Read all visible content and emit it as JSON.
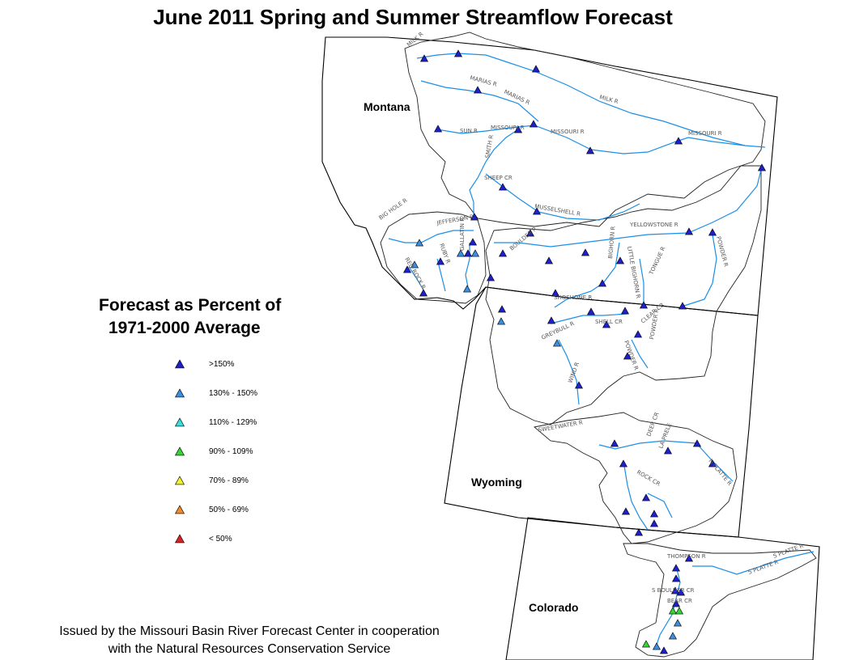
{
  "title": "June 2011 Spring and Summer Streamflow Forecast",
  "legend": {
    "title_line1": "Forecast as Percent of",
    "title_line2": "1971-2000 Average",
    "items": [
      {
        "label": ">150%",
        "color": "#1f1fcc"
      },
      {
        "label": "130% - 150%",
        "color": "#3c8ee0"
      },
      {
        "label": "110% - 129%",
        "color": "#36e0e0"
      },
      {
        "label": "90% - 109%",
        "color": "#33d633"
      },
      {
        "label": "70% - 89%",
        "color": "#f2f230"
      },
      {
        "label": "50% - 69%",
        "color": "#f08a2c"
      },
      {
        "label": "< 50%",
        "color": "#e02020"
      }
    ]
  },
  "states": {
    "montana": "Montana",
    "wyoming": "Wyoming",
    "colorado": "Colorado"
  },
  "river_labels": [
    "MILK R",
    "MARIAS R",
    "MARIAS R",
    "MILK R",
    "SUN R",
    "MISSOURI R",
    "MISSOURI R",
    "MISSOURI R",
    "SMITH R",
    "SHEEP CR",
    "MUSSELSHELL R",
    "BIG HOLE R",
    "JEFFERSON R",
    "RUBY R",
    "GALLATIN R",
    "RED ROCK R",
    "BOULDER R",
    "YELLOWSTONE R",
    "BIGHORN R",
    "LITTLE BIGHORN R",
    "TONGUE R",
    "POWDER R",
    "SHOSHONE R",
    "GREYBULL R",
    "SHELL CR",
    "CLEAR CR",
    "POWDER R",
    "POWDER R",
    "WIND R",
    "SWEETWATER R",
    "DEER CR",
    "LA PRELE",
    "N PLATTE R",
    "ROCK CR",
    "THOMPSON R",
    "S PLATTE R",
    "S PLATTE R",
    "S BOULDER CR",
    "BEAR CR"
  ],
  "footer": {
    "line1": "Issued by the Missouri Basin River Forecast Center in cooperation",
    "line2": "with the Natural Resources Conservation Service"
  }
}
